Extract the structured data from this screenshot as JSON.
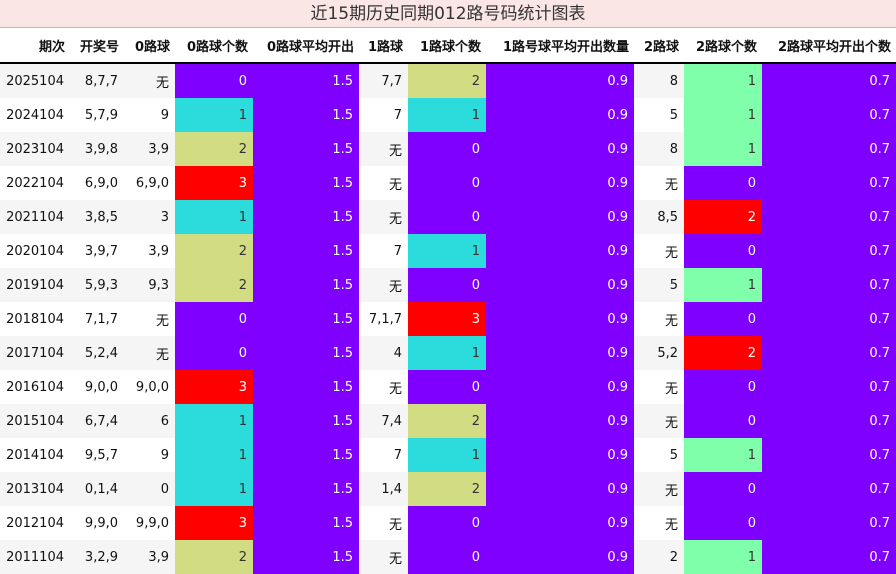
{
  "title": "近15期历史同期012路号码统计图表",
  "headers": [
    "期次",
    "开奖号",
    "0路球",
    "0路球个数",
    "0路球平均开出",
    "1路球",
    "1路球个数",
    "1路号球平均开出数量",
    "2路球",
    "2路球个数",
    "2路球平均开出个数"
  ],
  "rows": [
    [
      "2025104",
      "8,7,7",
      "无",
      "0",
      "1.5",
      "7,7",
      "2",
      "0.9",
      "8",
      "1",
      "0.7"
    ],
    [
      "2024104",
      "5,7,9",
      "9",
      "1",
      "1.5",
      "7",
      "1",
      "0.9",
      "5",
      "1",
      "0.7"
    ],
    [
      "2023104",
      "3,9,8",
      "3,9",
      "2",
      "1.5",
      "无",
      "0",
      "0.9",
      "8",
      "1",
      "0.7"
    ],
    [
      "2022104",
      "6,9,0",
      "6,9,0",
      "3",
      "1.5",
      "无",
      "0",
      "0.9",
      "无",
      "0",
      "0.7"
    ],
    [
      "2021104",
      "3,8,5",
      "3",
      "1",
      "1.5",
      "无",
      "0",
      "0.9",
      "8,5",
      "2",
      "0.7"
    ],
    [
      "2020104",
      "3,9,7",
      "3,9",
      "2",
      "1.5",
      "7",
      "1",
      "0.9",
      "无",
      "0",
      "0.7"
    ],
    [
      "2019104",
      "5,9,3",
      "9,3",
      "2",
      "1.5",
      "无",
      "0",
      "0.9",
      "5",
      "1",
      "0.7"
    ],
    [
      "2018104",
      "7,1,7",
      "无",
      "0",
      "1.5",
      "7,1,7",
      "3",
      "0.9",
      "无",
      "0",
      "0.7"
    ],
    [
      "2017104",
      "5,2,4",
      "无",
      "0",
      "1.5",
      "4",
      "1",
      "0.9",
      "5,2",
      "2",
      "0.7"
    ],
    [
      "2016104",
      "9,0,0",
      "9,0,0",
      "3",
      "1.5",
      "无",
      "0",
      "0.9",
      "无",
      "0",
      "0.7"
    ],
    [
      "2015104",
      "6,7,4",
      "6",
      "1",
      "1.5",
      "7,4",
      "2",
      "0.9",
      "无",
      "0",
      "0.7"
    ],
    [
      "2014104",
      "9,5,7",
      "9",
      "1",
      "1.5",
      "7",
      "1",
      "0.9",
      "5",
      "1",
      "0.7"
    ],
    [
      "2013104",
      "0,1,4",
      "0",
      "1",
      "1.5",
      "1,4",
      "2",
      "0.9",
      "无",
      "0",
      "0.7"
    ],
    [
      "2012104",
      "9,9,0",
      "9,9,0",
      "3",
      "1.5",
      "无",
      "0",
      "0.9",
      "无",
      "0",
      "0.7"
    ],
    [
      "2011104",
      "3,2,9",
      "3,9",
      "2",
      "1.5",
      "无",
      "0",
      "0.9",
      "2",
      "1",
      "0.7"
    ]
  ],
  "colors": {
    "avg_bg": "#8000ff",
    "count_0": "#8000ff",
    "count_1": "#2cdcdc",
    "count_2": "#d2dc82",
    "count_3": "#ff0000",
    "g_count_1": "#80ffaa",
    "g_count_2": "#ff0000",
    "title_bg": "#fbe6e6"
  }
}
